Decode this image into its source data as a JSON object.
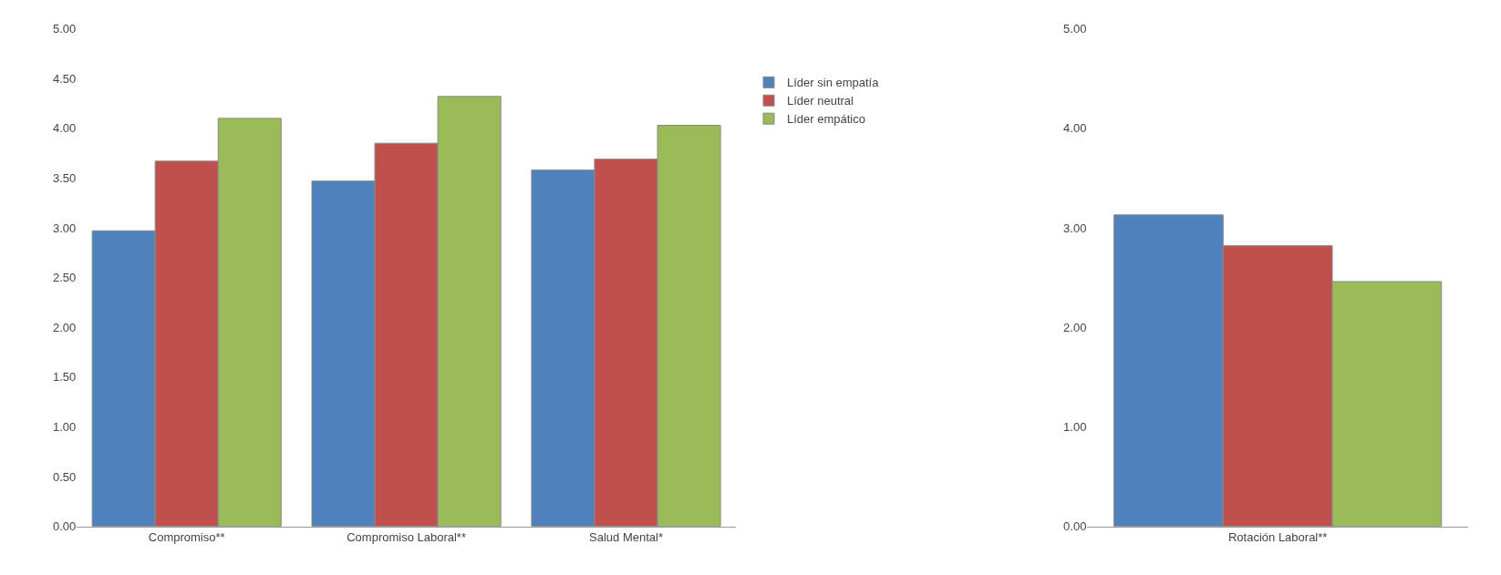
{
  "chart_data": [
    {
      "type": "bar",
      "categories": [
        "Compromiso**",
        "Compromiso Laboral**",
        "Salud Mental*"
      ],
      "series": [
        {
          "name": "Líder sin empatía",
          "color": "#4f81bd",
          "values": [
            2.97,
            3.47,
            3.58
          ]
        },
        {
          "name": "Líder neutral",
          "color": "#c0504d",
          "values": [
            3.67,
            3.85,
            3.69
          ]
        },
        {
          "name": "Líder empático",
          "color": "#9bbb59",
          "values": [
            4.1,
            4.32,
            4.03
          ]
        }
      ],
      "ylim": [
        0,
        5
      ],
      "yticks": [
        {
          "value": 0,
          "label": "0.00"
        },
        {
          "value": 0.5,
          "label": "0.50"
        },
        {
          "value": 1,
          "label": "1.00"
        },
        {
          "value": 1.5,
          "label": "1.50"
        },
        {
          "value": 2,
          "label": "2.00"
        },
        {
          "value": 2.5,
          "label": "2.50"
        },
        {
          "value": 3,
          "label": "3.00"
        },
        {
          "value": 3.5,
          "label": "3.50"
        },
        {
          "value": 4,
          "label": "4.00"
        },
        {
          "value": 4.5,
          "label": "4.50"
        },
        {
          "value": 5,
          "label": "5.00"
        }
      ],
      "legend": "right"
    },
    {
      "type": "bar",
      "categories": [
        "Rotación Laboral**"
      ],
      "series": [
        {
          "color": "#4f81bd",
          "values": [
            3.13
          ]
        },
        {
          "color": "#c0504d",
          "values": [
            2.82
          ]
        },
        {
          "color": "#9bbb59",
          "values": [
            2.46
          ]
        }
      ],
      "ylim": [
        0,
        5
      ],
      "yticks": [
        {
          "value": 0,
          "label": "0.00"
        },
        {
          "value": 1,
          "label": "1.00"
        },
        {
          "value": 2,
          "label": "2.00"
        },
        {
          "value": 3,
          "label": "3.00"
        },
        {
          "value": 4,
          "label": "4.00"
        },
        {
          "value": 5,
          "label": "5.00"
        }
      ]
    }
  ]
}
